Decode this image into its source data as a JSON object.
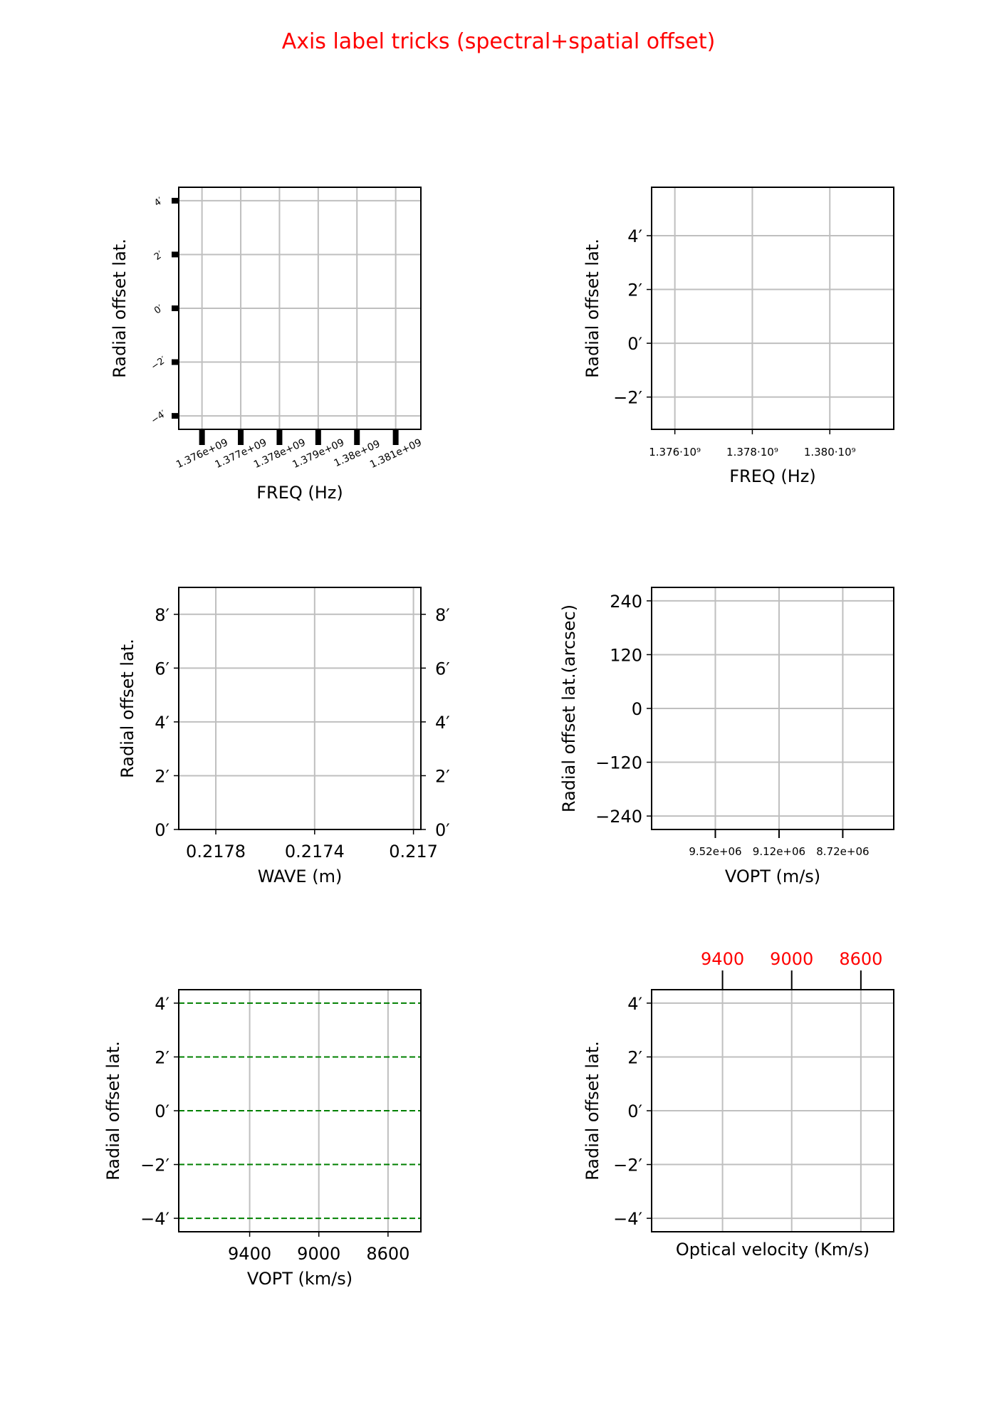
{
  "figure": {
    "title": "Axis label tricks (spectral+spatial offset)",
    "title_color": "#ff0000",
    "grid_color": "#bfbfbf",
    "background": "#ffffff"
  },
  "chart_data": [
    {
      "type": "line",
      "panel": "top-left",
      "series": [],
      "xlabel": "FREQ (Hz)",
      "ylabel": "Radial offset lat.",
      "xlim": [
        1375400000,
        1381650000
      ],
      "ylim": [
        -4.5,
        4.5
      ],
      "xticks": [
        1376000000,
        1377000000,
        1378000000,
        1379000000,
        1380000000,
        1381000000
      ],
      "xticklabels": [
        "1.376e+09",
        "1.377e+09",
        "1.378e+09",
        "1.379e+09",
        "1.38e+09",
        "1.381e+09"
      ],
      "yticks": [
        -4,
        -2,
        0,
        2,
        4
      ],
      "yticklabels": [
        "−4′",
        "−2′",
        "0′",
        "2′",
        "4′"
      ],
      "xtick_style": "long-thick-rotated-labels",
      "ytick_style": "thick-rotated-labels",
      "grid": true
    },
    {
      "type": "line",
      "panel": "top-right",
      "series": [],
      "xlabel": "FREQ (Hz)",
      "ylabel": "Radial offset lat.",
      "xlim": [
        1375400000,
        1381650000
      ],
      "ylim": [
        -3.2,
        5.8
      ],
      "xticks": [
        1376000000,
        1378000000,
        1380000000
      ],
      "xticklabels": [
        "1.376·10⁹",
        "1.378·10⁹",
        "1.380·10⁹"
      ],
      "yticks": [
        -2,
        0,
        2,
        4
      ],
      "yticklabels": [
        "−2′",
        "0′",
        "2′",
        "4′"
      ],
      "grid": true
    },
    {
      "type": "line",
      "panel": "middle-left",
      "series": [],
      "xlabel": "WAVE (m)",
      "ylabel": "Radial offset lat.",
      "xlim": [
        0.21795,
        0.21697
      ],
      "ylim": [
        0,
        9
      ],
      "xticks": [
        0.2178,
        0.2174,
        0.217
      ],
      "xticklabels": [
        "0.2178",
        "0.2174",
        "0.217"
      ],
      "yticks": [
        0,
        2,
        4,
        6,
        8
      ],
      "yticklabels": [
        "0′",
        "2′",
        "4′",
        "6′",
        "8′"
      ],
      "right_yticklabels": true,
      "grid": true
    },
    {
      "type": "line",
      "panel": "middle-right",
      "series": [],
      "xlabel": "VOPT (m/s)",
      "ylabel": "Radial offset lat.(arcsec)",
      "xlim": [
        9920000,
        8400000
      ],
      "ylim": [
        -270,
        270
      ],
      "xticks": [
        9520000,
        9120000,
        8720000
      ],
      "xticklabels": [
        "9.52e+06",
        "9.12e+06",
        "8.72e+06"
      ],
      "yticks": [
        -240,
        -120,
        0,
        120,
        240
      ],
      "yticklabels": [
        "−240",
        "−120",
        "0",
        "120",
        "240"
      ],
      "grid": true
    },
    {
      "type": "line",
      "panel": "bottom-left",
      "series": [],
      "xlabel": "VOPT (km/s)",
      "ylabel": "Radial offset lat.",
      "xlim": [
        9810,
        8410
      ],
      "ylim": [
        -4.5,
        4.5
      ],
      "xticks": [
        9400,
        9000,
        8600
      ],
      "xticklabels": [
        "9400",
        "9000",
        "8600"
      ],
      "yticks": [
        -4,
        -2,
        0,
        2,
        4
      ],
      "yticklabels": [
        "−4′",
        "−2′",
        "0′",
        "2′",
        "4′"
      ],
      "ygrid_color": "#008000",
      "ygrid_style": "dashed",
      "grid": true
    },
    {
      "type": "line",
      "panel": "bottom-right",
      "series": [],
      "xlabel": "Optical velocity (Km/s)",
      "ylabel": "Radial offset lat.",
      "xlim": [
        9810,
        8410
      ],
      "ylim": [
        -4.5,
        4.5
      ],
      "xticks": [
        9400,
        9000,
        8600
      ],
      "xticklabels": [
        "9400",
        "9000",
        "8600"
      ],
      "xticks_position": "top",
      "xticklabel_color": "#ff0000",
      "yticks": [
        -4,
        -2,
        0,
        2,
        4
      ],
      "yticklabels": [
        "−4′",
        "−2′",
        "0′",
        "2′",
        "4′"
      ],
      "grid": true
    }
  ]
}
